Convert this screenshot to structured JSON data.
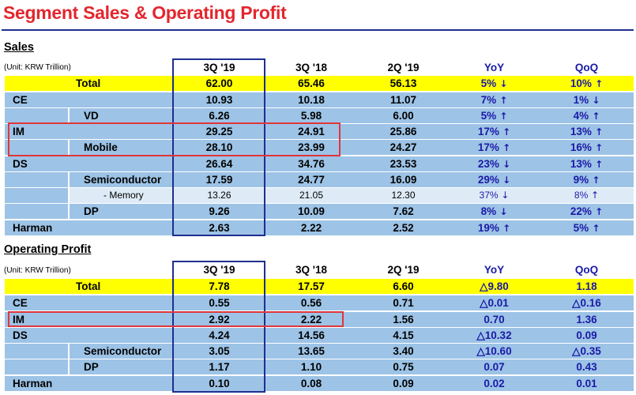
{
  "title": "Segment Sales & Operating Profit",
  "sales": {
    "section_label": "Sales",
    "unit": "(Unit: KRW Trillion)",
    "headers": [
      "3Q '19",
      "3Q '18",
      "2Q '19",
      "YoY",
      "QoQ"
    ],
    "rows": [
      {
        "label": "Total",
        "v1": "62.00",
        "v2": "65.46",
        "v3": "56.13",
        "yoy": "5%",
        "yoy_arrow": "↓",
        "qoq": "10%",
        "qoq_arrow": "↑"
      },
      {
        "label": "CE",
        "v1": "10.93",
        "v2": "10.18",
        "v3": "11.07",
        "yoy": "7%",
        "yoy_arrow": "↑",
        "qoq": "1%",
        "qoq_arrow": "↓"
      },
      {
        "label": "VD",
        "v1": "6.26",
        "v2": "5.98",
        "v3": "6.00",
        "yoy": "5%",
        "yoy_arrow": "↑",
        "qoq": "4%",
        "qoq_arrow": "↑"
      },
      {
        "label": "IM",
        "v1": "29.25",
        "v2": "24.91",
        "v3": "25.86",
        "yoy": "17%",
        "yoy_arrow": "↑",
        "qoq": "13%",
        "qoq_arrow": "↑"
      },
      {
        "label": "Mobile",
        "v1": "28.10",
        "v2": "23.99",
        "v3": "24.27",
        "yoy": "17%",
        "yoy_arrow": "↑",
        "qoq": "16%",
        "qoq_arrow": "↑"
      },
      {
        "label": "DS",
        "v1": "26.64",
        "v2": "34.76",
        "v3": "23.53",
        "yoy": "23%",
        "yoy_arrow": "↓",
        "qoq": "13%",
        "qoq_arrow": "↑"
      },
      {
        "label": "Semiconductor",
        "v1": "17.59",
        "v2": "24.77",
        "v3": "16.09",
        "yoy": "29%",
        "yoy_arrow": "↓",
        "qoq": "9%",
        "qoq_arrow": "↑"
      },
      {
        "label": "- Memory",
        "v1": "13.26",
        "v2": "21.05",
        "v3": "12.30",
        "yoy": "37%",
        "yoy_arrow": "↓",
        "qoq": "8%",
        "qoq_arrow": "↑"
      },
      {
        "label": "DP",
        "v1": "9.26",
        "v2": "10.09",
        "v3": "7.62",
        "yoy": "8%",
        "yoy_arrow": "↓",
        "qoq": "22%",
        "qoq_arrow": "↑"
      },
      {
        "label": "Harman",
        "v1": "2.63",
        "v2": "2.22",
        "v3": "2.52",
        "yoy": "19%",
        "yoy_arrow": "↑",
        "qoq": "5%",
        "qoq_arrow": "↑"
      }
    ]
  },
  "op": {
    "section_label": "Operating Profit",
    "unit": "(Unit: KRW Trillion)",
    "headers": [
      "3Q '19",
      "3Q '18",
      "2Q '19",
      "YoY",
      "QoQ"
    ],
    "rows": [
      {
        "label": "Total",
        "v1": "7.78",
        "v2": "17.57",
        "v3": "6.60",
        "yoy": "△9.80",
        "qoq": "1.18"
      },
      {
        "label": "CE",
        "v1": "0.55",
        "v2": "0.56",
        "v3": "0.71",
        "yoy": "△0.01",
        "qoq": "△0.16"
      },
      {
        "label": "IM",
        "v1": "2.92",
        "v2": "2.22",
        "v3": "1.56",
        "yoy": "0.70",
        "qoq": "1.36"
      },
      {
        "label": "DS",
        "v1": "4.24",
        "v2": "14.56",
        "v3": "4.15",
        "yoy": "△10.32",
        "qoq": "0.09"
      },
      {
        "label": "Semiconductor",
        "v1": "3.05",
        "v2": "13.65",
        "v3": "3.40",
        "yoy": "△10.60",
        "qoq": "△0.35"
      },
      {
        "label": "DP",
        "v1": "1.17",
        "v2": "1.10",
        "v3": "0.75",
        "yoy": "0.07",
        "qoq": "0.43"
      },
      {
        "label": "Harman",
        "v1": "0.10",
        "v2": "0.08",
        "v3": "0.09",
        "yoy": "0.02",
        "qoq": "0.01"
      }
    ]
  },
  "colors": {
    "title": "#e3262e",
    "rule": "#1f2f8f",
    "total_band": "#ffff00",
    "blue_band": "#9dc3e6",
    "light_band": "#deebf7",
    "highlight_box": "#1f2f8f",
    "red_box": "#e0363a",
    "number_blue": "#1a1aa6"
  }
}
